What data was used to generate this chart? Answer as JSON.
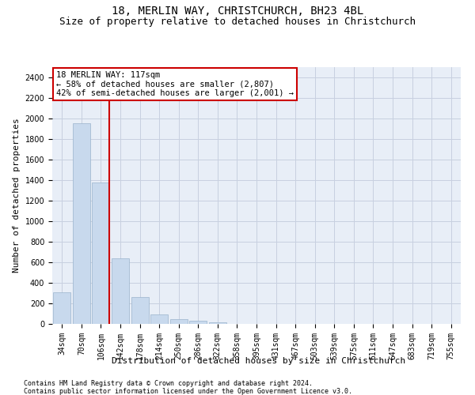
{
  "title1": "18, MERLIN WAY, CHRISTCHURCH, BH23 4BL",
  "title2": "Size of property relative to detached houses in Christchurch",
  "xlabel": "Distribution of detached houses by size in Christchurch",
  "ylabel": "Number of detached properties",
  "footnote1": "Contains HM Land Registry data © Crown copyright and database right 2024.",
  "footnote2": "Contains public sector information licensed under the Open Government Licence v3.0.",
  "annotation_title": "18 MERLIN WAY: 117sqm",
  "annotation_line1": "← 58% of detached houses are smaller (2,807)",
  "annotation_line2": "42% of semi-detached houses are larger (2,001) →",
  "bar_color": "#c8d9ed",
  "bar_edge_color": "#9ab3cc",
  "vline_color": "#cc0000",
  "vline_x_idx": 2,
  "categories": [
    "34sqm",
    "70sqm",
    "106sqm",
    "142sqm",
    "178sqm",
    "214sqm",
    "250sqm",
    "286sqm",
    "322sqm",
    "358sqm",
    "395sqm",
    "431sqm",
    "467sqm",
    "503sqm",
    "539sqm",
    "575sqm",
    "611sqm",
    "647sqm",
    "683sqm",
    "719sqm",
    "755sqm"
  ],
  "values": [
    310,
    1950,
    1380,
    640,
    260,
    95,
    50,
    28,
    18,
    0,
    0,
    0,
    0,
    0,
    0,
    0,
    0,
    0,
    0,
    0,
    0
  ],
  "ylim": [
    0,
    2500
  ],
  "yticks": [
    0,
    200,
    400,
    600,
    800,
    1000,
    1200,
    1400,
    1600,
    1800,
    2000,
    2200,
    2400
  ],
  "background_color": "#ffffff",
  "axes_bg_color": "#e8eef7",
  "grid_color": "#c8d0e0",
  "title1_fontsize": 10,
  "title2_fontsize": 9,
  "tick_fontsize": 7,
  "ylabel_fontsize": 8,
  "xlabel_fontsize": 8,
  "annotation_fontsize": 7.5,
  "footnote_fontsize": 6,
  "annotation_box_color": "#ffffff",
  "annotation_box_edgecolor": "#cc0000"
}
